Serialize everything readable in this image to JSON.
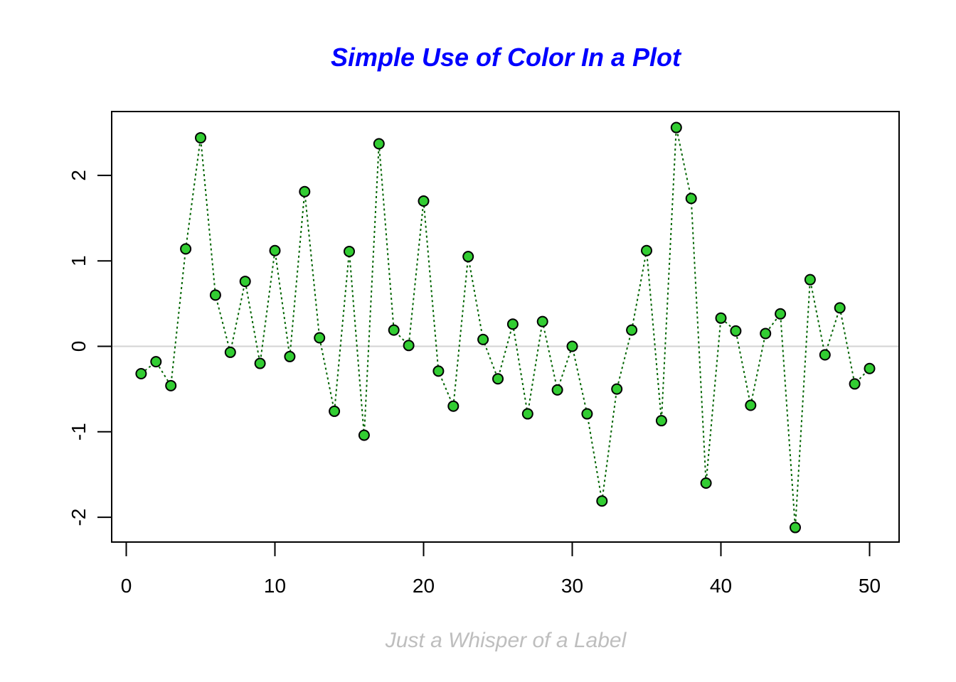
{
  "chart_data": {
    "type": "line",
    "title": "Simple Use of Color In a Plot",
    "xlabel": "Just a Whisper of a Label",
    "ylabel": "",
    "x": [
      1,
      2,
      3,
      4,
      5,
      6,
      7,
      8,
      9,
      10,
      11,
      12,
      13,
      14,
      15,
      16,
      17,
      18,
      19,
      20,
      21,
      22,
      23,
      24,
      25,
      26,
      27,
      28,
      29,
      30,
      31,
      32,
      33,
      34,
      35,
      36,
      37,
      38,
      39,
      40,
      41,
      42,
      43,
      44,
      45,
      46,
      47,
      48,
      49,
      50
    ],
    "values": [
      -0.32,
      -0.18,
      -0.46,
      1.14,
      2.44,
      0.6,
      -0.07,
      0.76,
      -0.2,
      1.12,
      -0.12,
      1.81,
      0.1,
      -0.76,
      1.11,
      -1.04,
      2.37,
      0.19,
      0.01,
      1.7,
      -0.29,
      -0.7,
      1.05,
      0.08,
      -0.38,
      0.26,
      -0.79,
      0.29,
      -0.51,
      0.0,
      -0.79,
      -1.81,
      -0.5,
      0.19,
      1.12,
      -0.87,
      2.56,
      1.73,
      -1.6,
      0.33,
      0.18,
      -0.69,
      0.15,
      0.38,
      -2.12,
      0.78,
      -0.1,
      0.45,
      -0.44,
      -0.26
    ],
    "xlim": [
      0,
      50
    ],
    "ylim": [
      -2,
      2
    ],
    "xticks": [
      "0",
      "10",
      "20",
      "30",
      "40",
      "50"
    ],
    "yticks": [
      "-2",
      "-1",
      "0",
      "1",
      "2"
    ],
    "reference_line_y": 0,
    "line_style": "dotted",
    "colors": {
      "title": "#0000ff",
      "xlabel": "#bebebe",
      "line": "#006400",
      "point_fill": "#32cd32",
      "point_stroke": "#000000",
      "reference_line": "#d3d3d3"
    }
  }
}
